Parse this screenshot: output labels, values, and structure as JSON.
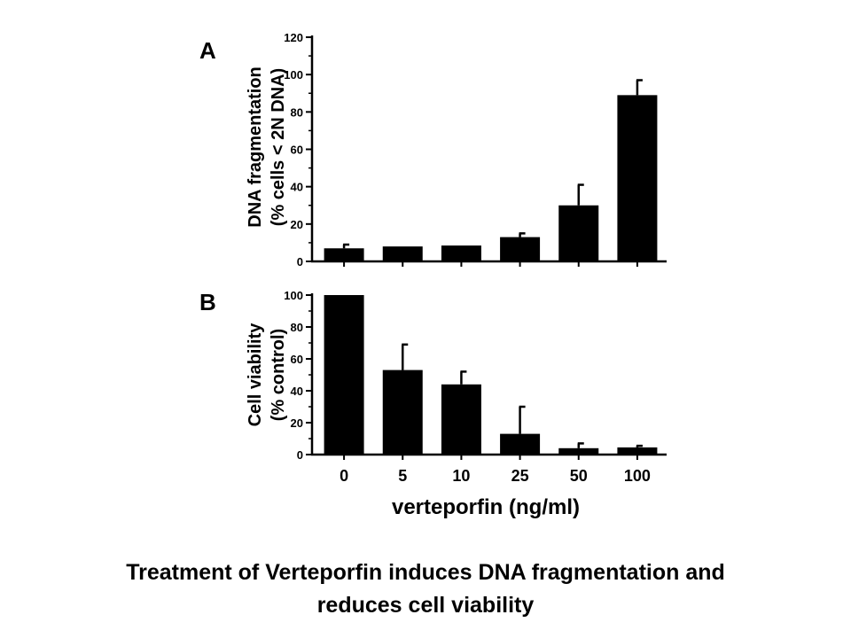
{
  "chart_data": [
    {
      "type": "bar",
      "panel": "A",
      "categories": [
        "0",
        "5",
        "10",
        "25",
        "50",
        "100"
      ],
      "values": [
        7,
        8,
        8.5,
        13,
        30,
        89
      ],
      "errors": [
        2,
        0,
        0,
        2,
        11,
        8
      ],
      "ylabel": [
        "DNA fragmentation",
        "(% cells < 2N DNA)"
      ],
      "yticks": [
        "0",
        "20",
        "40",
        "60",
        "80",
        "100",
        "120"
      ],
      "ylim": [
        0,
        120
      ],
      "xlabel": "",
      "bar_color": "#000000"
    },
    {
      "type": "bar",
      "panel": "B",
      "categories": [
        "0",
        "5",
        "10",
        "25",
        "50",
        "100"
      ],
      "values": [
        100,
        53,
        44,
        13,
        4,
        4.5
      ],
      "errors": [
        0,
        16,
        8,
        17,
        3,
        1
      ],
      "ylabel": [
        "Cell viability",
        "(% control)"
      ],
      "yticks": [
        "0",
        "20",
        "40",
        "60",
        "80",
        "100"
      ],
      "ylim": [
        0,
        100
      ],
      "xlabel": "verteporfin (ng/ml)",
      "bar_color": "#000000"
    }
  ],
  "caption": {
    "line1": "Treatment of Verteporfin induces DNA fragmentation and",
    "line2": "reduces cell viability"
  }
}
